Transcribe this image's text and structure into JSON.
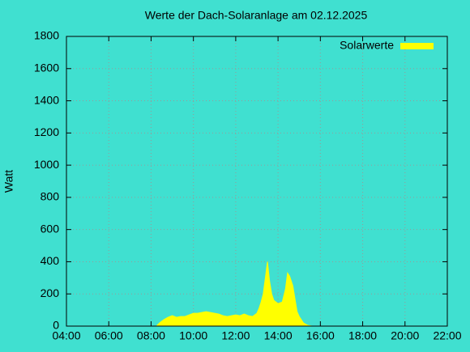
{
  "chart_data": {
    "type": "area",
    "title": "Werte der Dach-Solaranlage am 02.12.2025",
    "y_label": "Watt",
    "x": [
      8.25,
      8.4,
      8.6,
      8.8,
      9.0,
      9.2,
      9.4,
      9.6,
      9.8,
      10.0,
      10.2,
      10.4,
      10.6,
      10.8,
      11.0,
      11.2,
      11.4,
      11.6,
      11.8,
      12.0,
      12.2,
      12.4,
      12.6,
      12.8,
      13.0,
      13.1,
      13.2,
      13.3,
      13.4,
      13.5,
      13.6,
      13.7,
      13.8,
      14.0,
      14.2,
      14.35,
      14.45,
      14.55,
      14.7,
      14.8,
      14.9,
      15.0,
      15.2,
      15.4,
      15.6
    ],
    "series": [
      {
        "name": "Solarwerte",
        "color": "#ffff00",
        "values": [
          0,
          20,
          40,
          55,
          65,
          55,
          60,
          60,
          70,
          80,
          80,
          85,
          90,
          85,
          80,
          75,
          65,
          60,
          65,
          70,
          65,
          75,
          65,
          60,
          80,
          110,
          150,
          200,
          300,
          400,
          280,
          200,
          160,
          140,
          150,
          230,
          330,
          310,
          250,
          170,
          90,
          60,
          20,
          5,
          0
        ]
      }
    ],
    "xlim": [
      4,
      22
    ],
    "xticks": [
      {
        "value": 4,
        "label": "04:00"
      },
      {
        "value": 6,
        "label": "06:00"
      },
      {
        "value": 8,
        "label": "08:00"
      },
      {
        "value": 10,
        "label": "10:00"
      },
      {
        "value": 12,
        "label": "12:00"
      },
      {
        "value": 14,
        "label": "14:00"
      },
      {
        "value": 16,
        "label": "16:00"
      },
      {
        "value": 18,
        "label": "18:00"
      },
      {
        "value": 20,
        "label": "20:00"
      },
      {
        "value": 22,
        "label": "22:00"
      }
    ],
    "ylim": [
      0,
      1800
    ],
    "yticks": [
      0,
      200,
      400,
      600,
      800,
      1000,
      1200,
      1400,
      1600,
      1800
    ],
    "grid": true,
    "legend": "top-right"
  }
}
